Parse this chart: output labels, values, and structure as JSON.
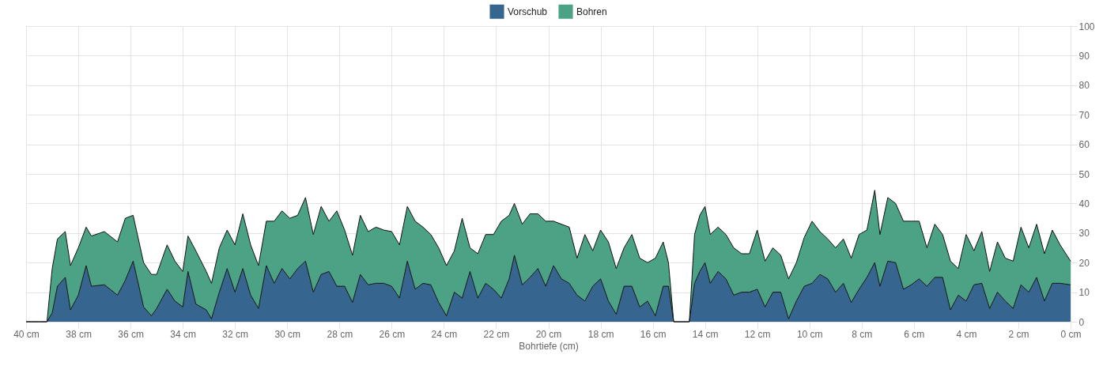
{
  "chart_data": {
    "type": "area",
    "stacked": true,
    "xlabel": "Bohrtiefe (cm)",
    "legend": "top",
    "grid": true,
    "marker": "none",
    "xlim": [
      40,
      0
    ],
    "xticks": [
      {
        "value": 40,
        "label": "40 cm"
      },
      {
        "value": 38,
        "label": "38 cm"
      },
      {
        "value": 36,
        "label": "36 cm"
      },
      {
        "value": 34,
        "label": "34 cm"
      },
      {
        "value": 32,
        "label": "32 cm"
      },
      {
        "value": 30,
        "label": "30 cm"
      },
      {
        "value": 28,
        "label": "28 cm"
      },
      {
        "value": 26,
        "label": "26 cm"
      },
      {
        "value": 24,
        "label": "24 cm"
      },
      {
        "value": 22,
        "label": "22 cm"
      },
      {
        "value": 20,
        "label": "20 cm"
      },
      {
        "value": 18,
        "label": "18 cm"
      },
      {
        "value": 16,
        "label": "16 cm"
      },
      {
        "value": 14,
        "label": "14 cm"
      },
      {
        "value": 12,
        "label": "12 cm"
      },
      {
        "value": 10,
        "label": "10 cm"
      },
      {
        "value": 8,
        "label": "8 cm"
      },
      {
        "value": 6,
        "label": "6 cm"
      },
      {
        "value": 4,
        "label": "4 cm"
      },
      {
        "value": 2,
        "label": "2 cm"
      },
      {
        "value": 0,
        "label": "0 cm"
      }
    ],
    "ylim": [
      0,
      100
    ],
    "yticks": [
      0,
      10,
      20,
      30,
      40,
      50,
      60,
      70,
      80,
      90,
      100
    ],
    "x": [
      40,
      39.5,
      39.2,
      39,
      38.8,
      38.5,
      38.3,
      38,
      37.7,
      37.5,
      37,
      36.5,
      36.2,
      35.9,
      35.5,
      35.2,
      35,
      34.6,
      34.3,
      34,
      33.8,
      33.5,
      33.1,
      32.9,
      32.6,
      32.3,
      32,
      31.7,
      31.4,
      31.1,
      30.8,
      30.5,
      30.2,
      29.9,
      29.6,
      29.3,
      29,
      28.7,
      28.4,
      28.1,
      27.8,
      27.5,
      27.2,
      26.9,
      26.6,
      26.3,
      26,
      25.7,
      25.4,
      25.1,
      24.8,
      24.5,
      24.2,
      23.9,
      23.6,
      23.3,
      23,
      22.7,
      22.4,
      22.1,
      21.8,
      21.5,
      21.3,
      21,
      20.7,
      20.4,
      20.1,
      19.8,
      19.5,
      19.2,
      18.9,
      18.6,
      18.3,
      18,
      17.7,
      17.4,
      17.1,
      16.8,
      16.5,
      16.2,
      15.9,
      15.6,
      15.4,
      15.2,
      14.6,
      14.4,
      14.2,
      14,
      13.8,
      13.5,
      13.2,
      12.9,
      12.6,
      12.3,
      12,
      11.7,
      11.4,
      11.1,
      10.8,
      10.5,
      10.2,
      9.9,
      9.6,
      9.3,
      9,
      8.7,
      8.4,
      8.1,
      7.8,
      7.5,
      7.3,
      7,
      6.7,
      6.4,
      6.1,
      5.8,
      5.5,
      5.2,
      4.9,
      4.6,
      4.3,
      4,
      3.7,
      3.4,
      3.1,
      2.8,
      2.5,
      2.2,
      1.9,
      1.6,
      1.3,
      1,
      0.7,
      0.4,
      0
    ],
    "series": [
      {
        "name": "Vorschub",
        "color": "#36658f",
        "values": [
          0,
          0,
          0,
          3,
          12,
          15,
          4,
          9,
          19,
          12,
          12.5,
          9,
          14,
          20.5,
          5,
          2,
          4.5,
          11,
          7,
          5,
          17,
          6,
          4,
          1,
          10,
          18,
          10,
          18,
          9,
          4.5,
          19,
          13,
          18,
          14.5,
          18,
          20.5,
          10,
          16,
          17,
          12,
          12,
          6.5,
          16,
          12.5,
          13,
          13,
          12,
          8,
          20.5,
          11,
          13,
          12.5,
          6.5,
          2,
          10,
          8,
          17,
          8,
          13,
          11,
          8,
          14.5,
          22.5,
          12.5,
          15,
          18,
          12,
          19,
          14.5,
          13,
          9,
          7,
          12,
          14.5,
          7,
          2.5,
          12,
          12,
          5,
          7,
          2,
          12,
          12,
          0,
          0,
          13,
          17,
          20,
          13,
          17,
          14.5,
          9,
          10,
          10,
          11,
          5,
          10,
          10,
          1,
          7,
          12,
          13,
          16,
          14.5,
          10,
          13,
          6.5,
          11,
          15,
          20,
          12,
          20.5,
          20,
          11,
          12.5,
          14.5,
          12,
          15,
          15,
          4,
          9,
          7,
          12.5,
          13,
          4.5,
          10,
          7,
          4.5,
          12.5,
          10,
          15,
          7,
          13,
          13,
          12.5
        ]
      },
      {
        "name": "Bohren",
        "color": "#4ca285",
        "values": [
          0,
          0,
          0,
          15,
          16,
          15.5,
          15,
          16,
          13,
          17,
          18,
          18,
          21,
          15.5,
          15,
          14,
          11.5,
          15,
          13.5,
          12,
          12,
          18,
          13,
          12,
          15,
          13,
          16,
          18.5,
          17,
          14.5,
          15,
          21,
          19.5,
          20.5,
          18,
          21.5,
          19.5,
          23,
          17,
          25.5,
          19,
          16,
          20,
          18,
          19,
          18,
          18.5,
          18,
          18.5,
          23,
          19,
          17,
          18.5,
          17,
          14,
          27,
          8,
          15,
          16.5,
          18.5,
          26,
          21.5,
          17.5,
          20.5,
          21.5,
          18.5,
          22,
          15,
          18.5,
          19,
          12.5,
          22.5,
          12,
          16.5,
          20,
          15.5,
          13,
          17.5,
          16.5,
          13,
          19.5,
          15,
          8,
          0,
          0,
          16.5,
          19,
          19,
          16.5,
          15,
          15,
          16,
          13,
          13,
          20,
          15.5,
          15,
          12.5,
          13.5,
          13,
          16.5,
          21,
          14.5,
          13.5,
          15,
          15,
          15,
          18.5,
          16,
          24.5,
          17.5,
          21.5,
          20,
          23,
          21.5,
          19.5,
          13,
          18,
          14.5,
          16.5,
          9,
          22.5,
          11.5,
          17.5,
          12.5,
          17,
          14.5,
          16,
          19.5,
          15,
          18,
          16,
          18,
          13,
          8
        ]
      }
    ]
  }
}
